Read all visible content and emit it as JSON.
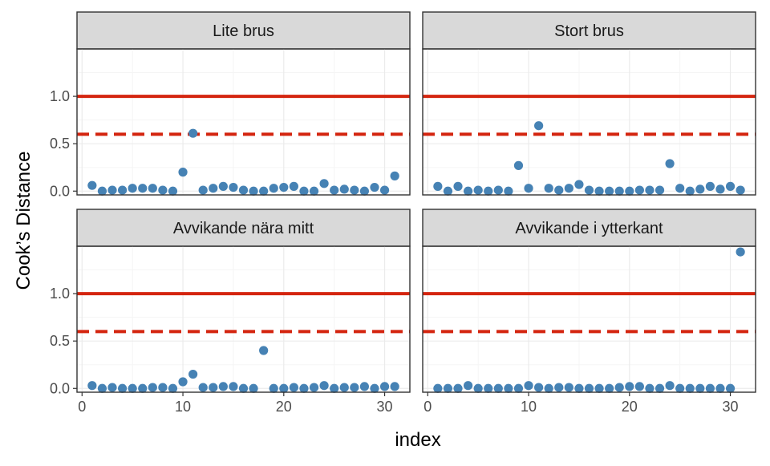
{
  "chart_data": {
    "type": "scatter",
    "xlabel": "index",
    "ylabel": "Cook’s Distance",
    "xlim": [
      -0.5,
      32.5
    ],
    "ylim": [
      -0.04,
      1.5
    ],
    "x_ticks": [
      0,
      10,
      20,
      30
    ],
    "x_tick_labels": [
      "0",
      "10",
      "20",
      "30"
    ],
    "y_ticks": [
      0.0,
      0.5,
      1.0
    ],
    "y_tick_labels": [
      "0.0",
      "0.5",
      "1.0"
    ],
    "grid": true,
    "colors": {
      "points": "#4682b4",
      "reference_lines": "#d4250f",
      "strip_background": "#d9d9d9",
      "panel_border": "#333333",
      "grid_major": "#ebebeb",
      "grid_minor": "#f5f5f5"
    },
    "reference_lines": [
      {
        "y": 1.0,
        "style": "solid"
      },
      {
        "y": 0.6,
        "style": "dashed"
      }
    ],
    "x": [
      1,
      2,
      3,
      4,
      5,
      6,
      7,
      8,
      9,
      10,
      11,
      12,
      13,
      14,
      15,
      16,
      17,
      18,
      19,
      20,
      21,
      22,
      23,
      24,
      25,
      26,
      27,
      28,
      29,
      30,
      31
    ],
    "panels": [
      {
        "title": "Lite brus",
        "y": [
          0.06,
          0.0,
          0.01,
          0.01,
          0.03,
          0.03,
          0.03,
          0.01,
          0.0,
          0.2,
          0.61,
          0.01,
          0.03,
          0.05,
          0.04,
          0.01,
          0.0,
          0.0,
          0.03,
          0.04,
          0.05,
          0.0,
          0.0,
          0.08,
          0.01,
          0.02,
          0.01,
          0.0,
          0.04,
          0.01,
          0.16
        ]
      },
      {
        "title": "Stort brus",
        "y": [
          0.05,
          0.0,
          0.05,
          0.0,
          0.01,
          0.0,
          0.01,
          0.0,
          0.27,
          0.03,
          0.69,
          0.03,
          0.01,
          0.03,
          0.07,
          0.01,
          0.0,
          0.0,
          0.0,
          0.0,
          0.01,
          0.01,
          0.01,
          0.29,
          0.03,
          0.0,
          0.02,
          0.05,
          0.02,
          0.05,
          0.01
        ]
      },
      {
        "title": "Avvikande nära mitt",
        "y": [
          0.03,
          0.0,
          0.01,
          0.0,
          0.0,
          0.0,
          0.01,
          0.01,
          0.0,
          0.07,
          0.15,
          0.01,
          0.01,
          0.02,
          0.02,
          0.0,
          0.0,
          0.4,
          0.0,
          0.0,
          0.01,
          0.0,
          0.01,
          0.03,
          0.0,
          0.01,
          0.01,
          0.02,
          0.0,
          0.02,
          0.02
        ]
      },
      {
        "title": "Avvikande i ytterkant",
        "y": [
          0.0,
          0.0,
          0.0,
          0.03,
          0.0,
          0.0,
          0.0,
          0.0,
          0.0,
          0.03,
          0.01,
          0.0,
          0.01,
          0.01,
          0.0,
          0.0,
          0.0,
          0.0,
          0.01,
          0.02,
          0.02,
          0.0,
          0.0,
          0.03,
          0.0,
          0.0,
          0.0,
          0.0,
          0.0,
          0.0,
          1.44
        ]
      }
    ]
  }
}
